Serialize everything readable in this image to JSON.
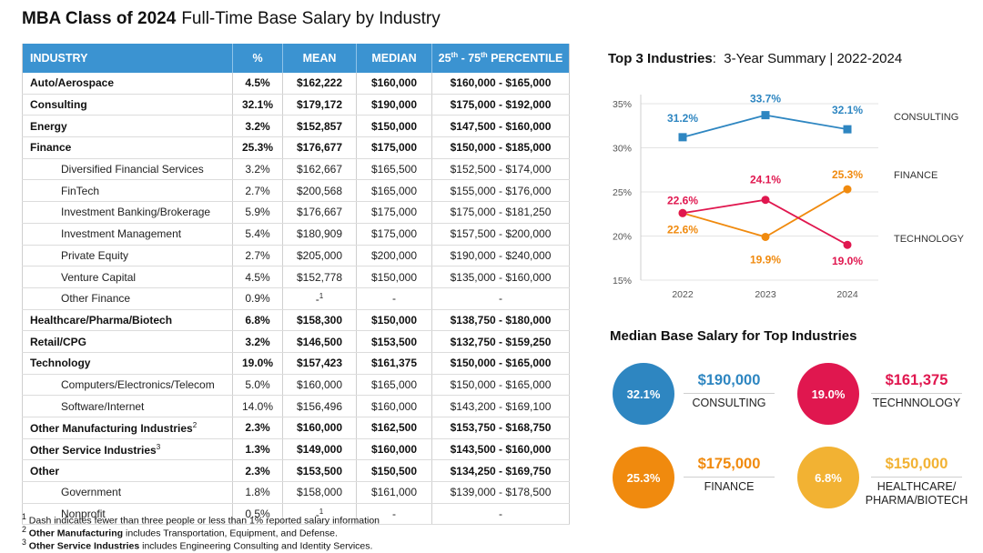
{
  "header": {
    "title_bold": "MBA Class of 2024",
    "title_rest": "Full-Time Base Salary by Industry"
  },
  "table": {
    "columns": {
      "industry": "INDUSTRY",
      "pct": "%",
      "mean": "MEAN",
      "median": "MEDIAN",
      "pctl_pre": "25",
      "pctl_sup1": "th",
      "pctl_mid": " - 75",
      "pctl_sup2": "th",
      "pctl_post": " PERCENTILE"
    },
    "rows": [
      {
        "level": "main",
        "name": "Auto/Aerospace",
        "pct": "4.5%",
        "mean": "$162,222",
        "median": "$160,000",
        "range": "$160,000 - $165,000"
      },
      {
        "level": "main",
        "name": "Consulting",
        "pct": "32.1%",
        "mean": "$179,172",
        "median": "$190,000",
        "range": "$175,000 - $192,000"
      },
      {
        "level": "main",
        "name": "Energy",
        "pct": "3.2%",
        "mean": "$152,857",
        "median": "$150,000",
        "range": "$147,500 - $160,000"
      },
      {
        "level": "main",
        "name": "Finance",
        "pct": "25.3%",
        "mean": "$176,677",
        "median": "$175,000",
        "range": "$150,000 - $185,000"
      },
      {
        "level": "sub",
        "name": "Diversified Financial Services",
        "pct": "3.2%",
        "mean": "$162,667",
        "median": "$165,500",
        "range": "$152,500 - $174,000"
      },
      {
        "level": "sub",
        "name": "FinTech",
        "pct": "2.7%",
        "mean": "$200,568",
        "median": "$165,000",
        "range": "$155,000 - $176,000"
      },
      {
        "level": "sub",
        "name": "Investment Banking/Brokerage",
        "pct": "5.9%",
        "mean": "$176,667",
        "median": "$175,000",
        "range": "$175,000 - $181,250"
      },
      {
        "level": "sub",
        "name": "Investment Management",
        "pct": "5.4%",
        "mean": "$180,909",
        "median": "$175,000",
        "range": "$157,500 - $200,000"
      },
      {
        "level": "sub",
        "name": "Private Equity",
        "pct": "2.7%",
        "mean": "$205,000",
        "median": "$200,000",
        "range": "$190,000 - $240,000"
      },
      {
        "level": "sub",
        "name": "Venture Capital",
        "pct": "4.5%",
        "mean": "$152,778",
        "median": "$150,000",
        "range": "$135,000 - $160,000"
      },
      {
        "level": "sub",
        "name": "Other Finance",
        "pct": "0.9%",
        "mean": "-",
        "mean_sup": "1",
        "median": "-",
        "range": "-"
      },
      {
        "level": "main",
        "name": "Healthcare/Pharma/Biotech",
        "pct": "6.8%",
        "mean": "$158,300",
        "median": "$150,000",
        "range": "$138,750 - $180,000"
      },
      {
        "level": "main",
        "name": "Retail/CPG",
        "pct": "3.2%",
        "mean": "$146,500",
        "median": "$153,500",
        "range": "$132,750 - $159,250"
      },
      {
        "level": "main",
        "name": "Technology",
        "pct": "19.0%",
        "mean": "$157,423",
        "median": "$161,375",
        "range": "$150,000 - $165,000"
      },
      {
        "level": "sub",
        "name": "Computers/Electronics/Telecom",
        "pct": "5.0%",
        "mean": "$160,000",
        "median": "$165,000",
        "range": "$150,000 - $165,000"
      },
      {
        "level": "sub",
        "name": "Software/Internet",
        "pct": "14.0%",
        "mean": "$156,496",
        "median": "$160,000",
        "range": "$143,200 - $169,100"
      },
      {
        "level": "main",
        "name": "Other Manufacturing Industries",
        "name_sup": "2",
        "pct": "2.3%",
        "mean": "$160,000",
        "median": "$162,500",
        "range": "$153,750 - $168,750"
      },
      {
        "level": "main",
        "name": "Other Service Industries",
        "name_sup": "3",
        "pct": "1.3%",
        "mean": "$149,000",
        "median": "$160,000",
        "range": "$143,500 - $160,000"
      },
      {
        "level": "main",
        "name": "Other",
        "pct": "2.3%",
        "mean": "$153,500",
        "median": "$150,500",
        "range": "$134,250 - $169,750"
      },
      {
        "level": "sub",
        "name": "Government",
        "pct": "1.8%",
        "mean": "$158,000",
        "median": "$161,000",
        "range": "$139,000 - $178,500"
      },
      {
        "level": "sub",
        "name": "Nonprofit",
        "pct": "0.5%",
        "mean": "-",
        "mean_sup": "1",
        "median": "-",
        "range": "-"
      }
    ]
  },
  "footnotes": {
    "f1_num": "1",
    "f1_text": "Dash indicates fewer than three people or less than 1% reported salary information",
    "f2_num": "2",
    "f2_bold": "Other Manufacturing",
    "f2_text": "includes Transportation, Equipment, and Defense.",
    "f3_num": "3",
    "f3_bold": "Other Service Industries",
    "f3_text": "includes Engineering Consulting and Identity Services."
  },
  "top3": {
    "title_bold": "Top 3 Industries",
    "title_rest": "3-Year Summary  |  2022-2024"
  },
  "chart_data": {
    "type": "line",
    "title": "Top 3 Industries: 3-Year Summary | 2022-2024",
    "x": [
      "2022",
      "2023",
      "2024"
    ],
    "ylim": [
      15,
      35
    ],
    "yticks": [
      15,
      20,
      25,
      30,
      35
    ],
    "ytick_labels": [
      "15%",
      "20%",
      "25%",
      "30%",
      "35%"
    ],
    "grid": true,
    "series": [
      {
        "name": "CONSULTING",
        "values": [
          31.2,
          33.7,
          32.1
        ],
        "labels": [
          "31.2%",
          "33.7%",
          "32.1%"
        ],
        "color": "#2e86c1",
        "marker": "square"
      },
      {
        "name": "FINANCE",
        "values": [
          22.6,
          19.9,
          25.3
        ],
        "labels": [
          "22.6%",
          "19.9%",
          "25.3%"
        ],
        "color": "#f08a0e",
        "marker": "circle"
      },
      {
        "name": "TECHNOLOGY",
        "values": [
          22.6,
          24.1,
          19.0
        ],
        "labels": [
          "22.6%",
          "24.1%",
          "19.0%"
        ],
        "color": "#e0174f",
        "marker": "circle"
      }
    ]
  },
  "median_section": {
    "title": "Median Base Salary for Top Industries",
    "cards": [
      {
        "pct": "32.1%",
        "value": "$190,000",
        "label": "CONSULTING",
        "color": "#2e86c1"
      },
      {
        "pct": "19.0%",
        "value": "$161,375",
        "label": "TECHNNOLOGY",
        "color": "#e0174f"
      },
      {
        "pct": "25.3%",
        "value": "$175,000",
        "label": "FINANCE",
        "color": "#f08a0e"
      },
      {
        "pct": "6.8%",
        "value": "$150,000",
        "label": "HEALTHCARE/\nPHARMA/BIOTECH",
        "color": "#f2b233"
      }
    ]
  }
}
